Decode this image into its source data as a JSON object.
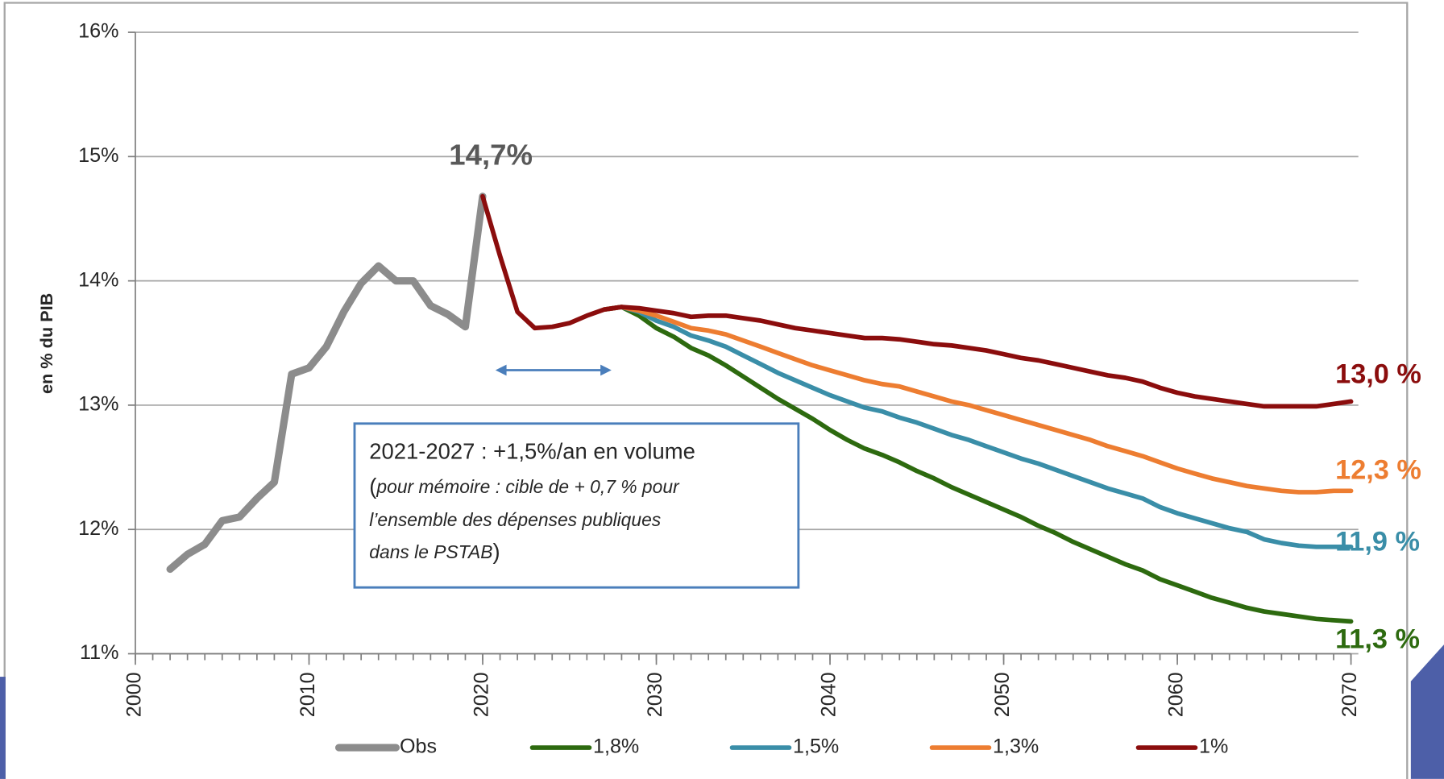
{
  "chart_data": {
    "type": "line",
    "y_label": "en % du PIB",
    "x": [
      2002,
      2003,
      2004,
      2005,
      2006,
      2007,
      2008,
      2009,
      2010,
      2011,
      2012,
      2013,
      2014,
      2015,
      2016,
      2017,
      2018,
      2019,
      2020,
      2021,
      2022,
      2023,
      2024,
      2025,
      2026,
      2027,
      2028,
      2029,
      2030,
      2031,
      2032,
      2033,
      2034,
      2035,
      2036,
      2037,
      2038,
      2039,
      2040,
      2041,
      2042,
      2043,
      2044,
      2045,
      2046,
      2047,
      2048,
      2049,
      2050,
      2051,
      2052,
      2053,
      2054,
      2055,
      2056,
      2057,
      2058,
      2059,
      2060,
      2061,
      2062,
      2063,
      2064,
      2065,
      2066,
      2067,
      2068,
      2069,
      2070
    ],
    "series": [
      {
        "name": "Obs",
        "color": "#8c8c8c",
        "values": [
          11.68,
          11.8,
          11.88,
          12.07,
          12.1,
          12.25,
          12.38,
          13.25,
          13.3,
          13.47,
          13.75,
          13.98,
          14.12,
          14.0,
          14.0,
          13.8,
          13.73,
          13.63,
          14.68,
          null,
          null,
          null,
          null,
          null,
          null,
          null,
          null,
          null,
          null,
          null,
          null,
          null,
          null,
          null,
          null,
          null,
          null,
          null,
          null,
          null,
          null,
          null,
          null,
          null,
          null,
          null,
          null,
          null,
          null,
          null,
          null,
          null,
          null,
          null,
          null,
          null,
          null,
          null,
          null,
          null,
          null,
          null,
          null,
          null,
          null,
          null,
          null,
          null,
          null
        ]
      },
      {
        "name": "1,8%",
        "color": "#2d6a0f",
        "values": [
          null,
          null,
          null,
          null,
          null,
          null,
          null,
          null,
          null,
          null,
          null,
          null,
          null,
          null,
          null,
          null,
          null,
          null,
          null,
          null,
          null,
          null,
          null,
          null,
          null,
          13.77,
          13.79,
          13.72,
          13.62,
          13.55,
          13.46,
          13.4,
          13.32,
          13.23,
          13.14,
          13.05,
          12.97,
          12.89,
          12.8,
          12.72,
          12.65,
          12.6,
          12.54,
          12.47,
          12.41,
          12.34,
          12.28,
          12.22,
          12.16,
          12.1,
          12.03,
          11.97,
          11.9,
          11.84,
          11.78,
          11.72,
          11.67,
          11.6,
          11.55,
          11.5,
          11.45,
          11.41,
          11.37,
          11.34,
          11.32,
          11.3,
          11.28,
          11.27,
          11.26
        ]
      },
      {
        "name": "1,5%",
        "color": "#3a8ea8",
        "values": [
          null,
          null,
          null,
          null,
          null,
          null,
          null,
          null,
          null,
          null,
          null,
          null,
          null,
          null,
          null,
          null,
          null,
          null,
          null,
          null,
          null,
          null,
          null,
          null,
          null,
          13.77,
          13.79,
          13.75,
          13.68,
          13.63,
          13.56,
          13.52,
          13.47,
          13.4,
          13.33,
          13.26,
          13.2,
          13.14,
          13.08,
          13.03,
          12.98,
          12.95,
          12.9,
          12.86,
          12.81,
          12.76,
          12.72,
          12.67,
          12.62,
          12.57,
          12.53,
          12.48,
          12.43,
          12.38,
          12.33,
          12.29,
          12.25,
          12.18,
          12.13,
          12.09,
          12.05,
          12.01,
          11.98,
          11.92,
          11.89,
          11.87,
          11.86,
          11.86,
          11.86
        ]
      },
      {
        "name": "1,3%",
        "color": "#ed7d31",
        "values": [
          null,
          null,
          null,
          null,
          null,
          null,
          null,
          null,
          null,
          null,
          null,
          null,
          null,
          null,
          null,
          null,
          null,
          null,
          null,
          null,
          null,
          null,
          null,
          null,
          null,
          13.77,
          13.79,
          13.76,
          13.72,
          13.67,
          13.62,
          13.6,
          13.57,
          13.52,
          13.47,
          13.42,
          13.37,
          13.32,
          13.28,
          13.24,
          13.2,
          13.17,
          13.15,
          13.11,
          13.07,
          13.03,
          13.0,
          12.96,
          12.92,
          12.88,
          12.84,
          12.8,
          12.76,
          12.72,
          12.67,
          12.63,
          12.59,
          12.54,
          12.49,
          12.45,
          12.41,
          12.38,
          12.35,
          12.33,
          12.31,
          12.3,
          12.3,
          12.31,
          12.31
        ]
      },
      {
        "name": "1%",
        "color": "#8b0d0d",
        "values": [
          null,
          null,
          null,
          null,
          null,
          null,
          null,
          null,
          null,
          null,
          null,
          null,
          null,
          null,
          null,
          null,
          null,
          null,
          14.68,
          14.2,
          13.75,
          13.62,
          13.63,
          13.66,
          13.72,
          13.77,
          13.79,
          13.78,
          13.76,
          13.74,
          13.71,
          13.72,
          13.72,
          13.7,
          13.68,
          13.65,
          13.62,
          13.6,
          13.58,
          13.56,
          13.54,
          13.54,
          13.53,
          13.51,
          13.49,
          13.48,
          13.46,
          13.44,
          13.41,
          13.38,
          13.36,
          13.33,
          13.3,
          13.27,
          13.24,
          13.22,
          13.19,
          13.14,
          13.1,
          13.07,
          13.05,
          13.03,
          13.01,
          12.99,
          12.99,
          12.99,
          12.99,
          13.01,
          13.03
        ]
      }
    ],
    "xlim": [
      2000,
      2070
    ],
    "xticks": [
      2000,
      2010,
      2020,
      2030,
      2040,
      2050,
      2060,
      2070
    ],
    "ylim": [
      11,
      16
    ],
    "yticks": [
      {
        "value": 11,
        "label": "11%"
      },
      {
        "value": 12,
        "label": "12%"
      },
      {
        "value": 13,
        "label": "13%"
      },
      {
        "value": 14,
        "label": "14%"
      },
      {
        "value": 15,
        "label": "15%"
      },
      {
        "value": 16,
        "label": "16%"
      }
    ],
    "grid": true,
    "peak_label": {
      "text": "14,7%",
      "value": 14.7
    },
    "end_labels": [
      {
        "text": "13,0 %",
        "value": 13.0,
        "color": "#8b0d0d"
      },
      {
        "text": "12,3 %",
        "value": 12.3,
        "color": "#ed7d31"
      },
      {
        "text": "11,9 %",
        "value": 11.9,
        "color": "#3a8ea8"
      },
      {
        "text": "11,3 %",
        "value": 11.3,
        "color": "#2d6a0f"
      }
    ],
    "note": {
      "headline": "2021-2027 : +1,5%/an en volume",
      "open": "(",
      "close": ")",
      "lines": [
        "pour mémoire : cible de + 0,7 % pour",
        "l’ensemble des dépenses publiques",
        "dans le PSTAB"
      ]
    }
  }
}
